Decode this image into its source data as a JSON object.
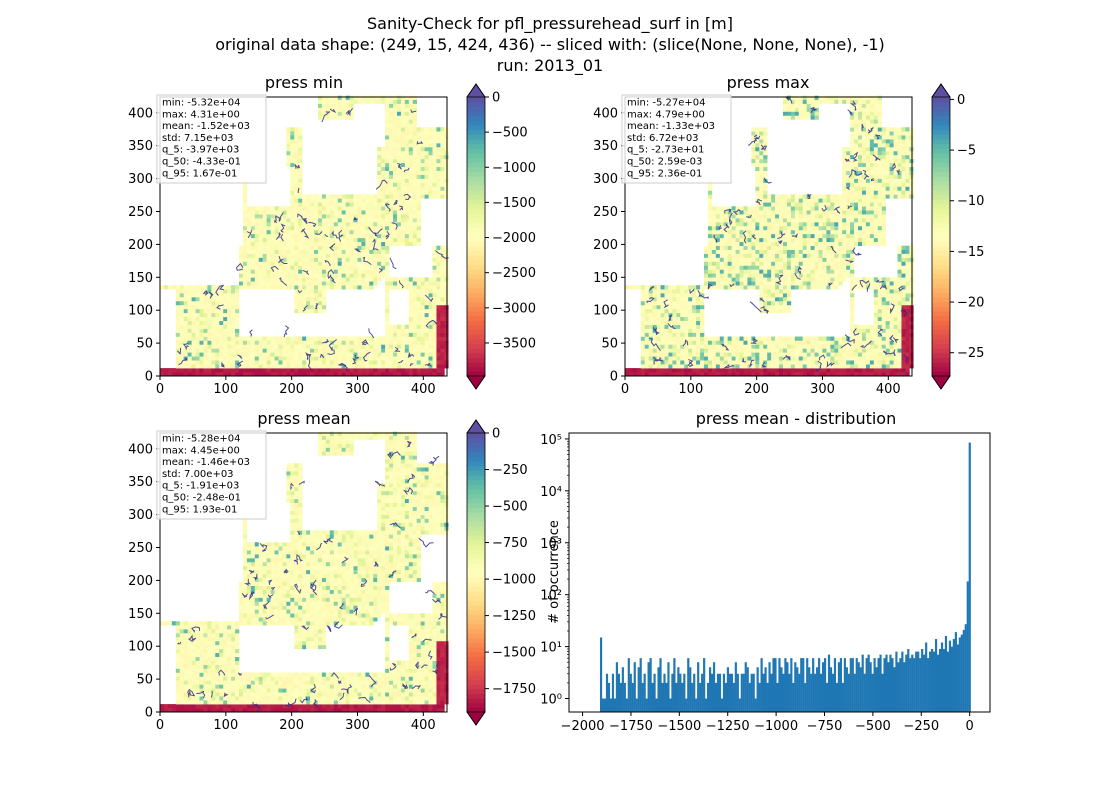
{
  "figure": {
    "title_lines": [
      "Sanity-Check for pfl_pressurehead_surf in [m]",
      "original data shape: (249, 15, 424, 436) -- sliced with: (slice(None, None, None), -1)",
      "run: 2013_01"
    ]
  },
  "chart_data": [
    {
      "type": "heatmap",
      "title": "press min",
      "x_ticks": [
        0,
        100,
        200,
        300,
        400
      ],
      "y_ticks": [
        0,
        50,
        100,
        150,
        200,
        250,
        300,
        350,
        400
      ],
      "xlim": [
        0,
        436
      ],
      "ylim": [
        0,
        424
      ],
      "stats": [
        "min: -5.32e+04",
        "max: 4.31e+00",
        "mean: -1.52e+03",
        "std: 7.15e+03",
        "q_5: -3.97e+03",
        "q_50: -4.33e-01",
        "q_95: 1.67e-01"
      ],
      "colorbar": {
        "colormap": "Spectral",
        "vmin": -3970,
        "vmax": 0,
        "extend": "both",
        "ticks": [
          0,
          -500,
          -1000,
          -1500,
          -2000,
          -2500,
          -3000,
          -3500
        ],
        "tick_labels": [
          "0",
          "−500",
          "−1000",
          "−1500",
          "−2000",
          "−2500",
          "−3000",
          "−3500"
        ]
      }
    },
    {
      "type": "heatmap",
      "title": "press max",
      "x_ticks": [
        0,
        100,
        200,
        300,
        400
      ],
      "y_ticks": [
        0,
        50,
        100,
        150,
        200,
        250,
        300,
        350,
        400
      ],
      "xlim": [
        0,
        436
      ],
      "ylim": [
        0,
        424
      ],
      "stats": [
        "min: -5.27e+04",
        "max: 4.79e+00",
        "mean: -1.33e+03",
        "std: 6.72e+03",
        "q_5: -2.73e+01",
        "q_50: 2.59e-03",
        "q_95: 2.36e-01"
      ],
      "colorbar": {
        "colormap": "Spectral",
        "vmin": -27.3,
        "vmax": 0.24,
        "extend": "both",
        "ticks": [
          0,
          -5,
          -10,
          -15,
          -20,
          -25
        ],
        "tick_labels": [
          "0",
          "−5",
          "−10",
          "−15",
          "−20",
          "−25"
        ]
      }
    },
    {
      "type": "heatmap",
      "title": "press mean",
      "x_ticks": [
        0,
        100,
        200,
        300,
        400
      ],
      "y_ticks": [
        0,
        50,
        100,
        150,
        200,
        250,
        300,
        350,
        400
      ],
      "xlim": [
        0,
        436
      ],
      "ylim": [
        0,
        424
      ],
      "stats": [
        "min: -5.28e+04",
        "max: 4.45e+00",
        "mean: -1.46e+03",
        "std: 7.00e+03",
        "q_5: -1.91e+03",
        "q_50: -2.48e-01",
        "q_95: 1.93e-01"
      ],
      "colorbar": {
        "colormap": "Spectral",
        "vmin": -1910,
        "vmax": 0,
        "extend": "both",
        "ticks": [
          0,
          -250,
          -500,
          -750,
          -1000,
          -1250,
          -1500,
          -1750
        ],
        "tick_labels": [
          "0",
          "−250",
          "−500",
          "−750",
          "−1000",
          "−1250",
          "−1500",
          "−1750"
        ]
      }
    },
    {
      "type": "bar",
      "title": "press mean - distribution",
      "xlabel": "",
      "ylabel": "# of occurrence",
      "yscale": "log",
      "xlim": [
        -2070,
        105
      ],
      "ylim": [
        0.55,
        130000
      ],
      "x_ticks": [
        -2000,
        -1750,
        -1500,
        -1250,
        -1000,
        -750,
        -500,
        -250,
        0
      ],
      "x_tick_labels": [
        "−2000",
        "−1750",
        "−1500",
        "−1250",
        "−1000",
        "−750",
        "−500",
        "−250",
        "0"
      ],
      "y_ticks": [
        1,
        10,
        100,
        1000,
        10000,
        100000
      ],
      "y_tick_labels": [
        "10⁰",
        "10¹",
        "10²",
        "10³",
        "10⁴",
        "10⁵"
      ],
      "bin_range": [
        -1910,
        5
      ],
      "counts": [
        15,
        1,
        1,
        3,
        2,
        1,
        3,
        1,
        5,
        3,
        2,
        4,
        2,
        1,
        6,
        3,
        2,
        5,
        1,
        4,
        6,
        2,
        3,
        1,
        5,
        6,
        2,
        3,
        1,
        4,
        6,
        2,
        3,
        2,
        5,
        1,
        3,
        6,
        2,
        4,
        3,
        2,
        3,
        1,
        6,
        4,
        2,
        3,
        1,
        5,
        2,
        3,
        6,
        1,
        2,
        4,
        3,
        5,
        2,
        3,
        3,
        1,
        3,
        2,
        4,
        3,
        3,
        2,
        5,
        3,
        1,
        3,
        3,
        5,
        4,
        2,
        3,
        3,
        1,
        4,
        2,
        6,
        3,
        4,
        2,
        5,
        3,
        6,
        6,
        2,
        6,
        4,
        3,
        6,
        5,
        3,
        6,
        2,
        5,
        4,
        3,
        6,
        6,
        2,
        6,
        4,
        3,
        6,
        3,
        4,
        6,
        3,
        5,
        6,
        2,
        7,
        4,
        3,
        6,
        2,
        5,
        6,
        2,
        6,
        4,
        3,
        6,
        6,
        3,
        6,
        5,
        4,
        7,
        3,
        6,
        7,
        5,
        3,
        6,
        4,
        6,
        7,
        3,
        6,
        7,
        5,
        7,
        6,
        4,
        8,
        5,
        6,
        8,
        5,
        7,
        9,
        6,
        7,
        6,
        8,
        8,
        6,
        9,
        7,
        12,
        6,
        8,
        9,
        8,
        14,
        7,
        9,
        12,
        9,
        16,
        8,
        13,
        10,
        14,
        19,
        11,
        15,
        17,
        21,
        27,
        180,
        85000
      ]
    }
  ]
}
